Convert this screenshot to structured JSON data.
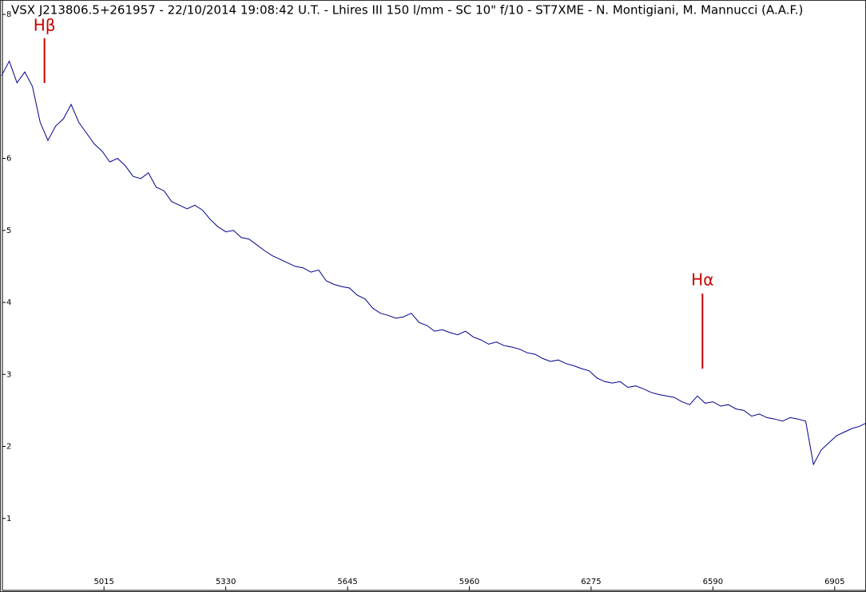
{
  "chart_data": {
    "type": "line",
    "title": "VSX J213806.5+261957 - 22/10/2014 19:08:42 U.T. - Lhires III 150 l/mm - SC 10\" f/10 - ST7XME - N. Montigiani, M. Mannucci (A.A.F.)",
    "x": [
      4750,
      4770,
      4790,
      4810,
      4830,
      4850,
      4870,
      4890,
      4910,
      4930,
      4950,
      4970,
      4990,
      5010,
      5030,
      5050,
      5070,
      5090,
      5110,
      5130,
      5150,
      5170,
      5190,
      5210,
      5230,
      5250,
      5270,
      5290,
      5310,
      5330,
      5350,
      5370,
      5390,
      5410,
      5430,
      5450,
      5470,
      5490,
      5510,
      5530,
      5550,
      5570,
      5590,
      5610,
      5630,
      5650,
      5670,
      5690,
      5710,
      5730,
      5750,
      5770,
      5790,
      5810,
      5830,
      5850,
      5870,
      5890,
      5910,
      5930,
      5950,
      5970,
      5990,
      6010,
      6030,
      6050,
      6070,
      6090,
      6110,
      6130,
      6150,
      6170,
      6190,
      6210,
      6230,
      6250,
      6270,
      6290,
      6310,
      6330,
      6350,
      6370,
      6390,
      6410,
      6430,
      6450,
      6470,
      6490,
      6510,
      6530,
      6550,
      6570,
      6590,
      6610,
      6630,
      6650,
      6670,
      6690,
      6710,
      6730,
      6750,
      6770,
      6790,
      6810,
      6830,
      6850,
      6870,
      6890,
      6910,
      6930,
      6950,
      6970,
      6985
    ],
    "series": [
      {
        "color": "#00008b",
        "values": [
          7.15,
          7.35,
          7.05,
          7.2,
          7.0,
          6.5,
          6.25,
          6.45,
          6.55,
          6.75,
          6.5,
          6.35,
          6.2,
          6.1,
          5.95,
          6.0,
          5.9,
          5.75,
          5.72,
          5.8,
          5.6,
          5.55,
          5.4,
          5.35,
          5.3,
          5.35,
          5.28,
          5.15,
          5.05,
          4.98,
          5.0,
          4.9,
          4.88,
          4.8,
          4.72,
          4.65,
          4.6,
          4.55,
          4.5,
          4.48,
          4.42,
          4.45,
          4.3,
          4.25,
          4.22,
          4.2,
          4.1,
          4.05,
          3.92,
          3.85,
          3.82,
          3.78,
          3.8,
          3.85,
          3.72,
          3.68,
          3.6,
          3.62,
          3.58,
          3.55,
          3.6,
          3.52,
          3.48,
          3.42,
          3.45,
          3.4,
          3.38,
          3.35,
          3.3,
          3.28,
          3.22,
          3.18,
          3.2,
          3.15,
          3.12,
          3.08,
          3.05,
          2.95,
          2.9,
          2.88,
          2.9,
          2.82,
          2.84,
          2.8,
          2.75,
          2.72,
          2.7,
          2.68,
          2.62,
          2.58,
          2.7,
          2.6,
          2.62,
          2.56,
          2.58,
          2.52,
          2.5,
          2.42,
          2.45,
          2.4,
          2.38,
          2.35,
          2.4,
          2.38,
          2.35,
          1.75,
          1.95,
          2.05,
          2.15,
          2.2,
          2.25,
          2.28,
          2.32
        ]
      }
    ],
    "xlim": [
      4746,
      6986
    ],
    "ylim": [
      0,
      8.2
    ],
    "xticks": [
      5015,
      5330,
      5645,
      5960,
      6275,
      6590,
      6905
    ],
    "yticks": [
      1,
      2,
      3,
      4,
      5,
      6,
      8
    ],
    "annotations": [
      {
        "text": "Hβ",
        "x": 4861,
        "color": "#cc0000"
      },
      {
        "text": "Hα",
        "x": 6563,
        "color": "#cc0000"
      }
    ]
  }
}
